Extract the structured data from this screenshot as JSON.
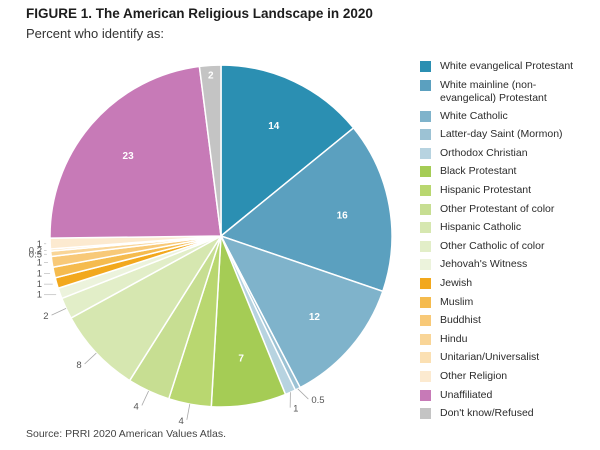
{
  "chart_data": {
    "type": "pie",
    "title": "FIGURE 1.  The American Religious Landscape in 2020",
    "subtitle": "Percent who identify as:",
    "source": "Source: PRRI 2020 American Values Atlas.",
    "legend_position": "right",
    "slices": [
      {
        "name": "White evangelical Protestant",
        "value": 14,
        "label": "14",
        "color": "#2b8fb2"
      },
      {
        "name": "White mainline (non-evangelical) Protestant",
        "value": 16,
        "label": "16",
        "color": "#5ba0bf"
      },
      {
        "name": "White Catholic",
        "value": 12,
        "label": "12",
        "color": "#7fb3cb"
      },
      {
        "name": "Latter-day Saint (Mormon)",
        "value": 0.5,
        "label": "0.5",
        "color": "#9cc2d4"
      },
      {
        "name": "Orthodox Christian",
        "value": 1,
        "label": "1",
        "color": "#b7d3e0"
      },
      {
        "name": "Black Protestant",
        "value": 7,
        "label": "7",
        "color": "#a5cc55"
      },
      {
        "name": "Hispanic Protestant",
        "value": 4,
        "label": "4",
        "color": "#b9d770"
      },
      {
        "name": "Other Protestant of color",
        "value": 4,
        "label": "4",
        "color": "#c7de92"
      },
      {
        "name": "Hispanic Catholic",
        "value": 8,
        "label": "8",
        "color": "#d6e7b0"
      },
      {
        "name": "Other Catholic of color",
        "value": 2,
        "label": "2",
        "color": "#e2eec8"
      },
      {
        "name": "Jehovah's Witness",
        "value": 1,
        "label": "1",
        "color": "#ecf3dc"
      },
      {
        "name": "Jewish",
        "value": 1,
        "label": "1",
        "color": "#f2a81d"
      },
      {
        "name": "Muslim",
        "value": 1,
        "label": "1",
        "color": "#f5bb4e"
      },
      {
        "name": "Buddhist",
        "value": 1,
        "label": "1",
        "color": "#f8c978"
      },
      {
        "name": "Hindu",
        "value": 0.5,
        "label": "0.5",
        "color": "#f9d597"
      },
      {
        "name": "Unitarian/Universalist",
        "value": 0.2,
        "label": "0.2",
        "color": "#fbe0b3"
      },
      {
        "name": "Other Religion",
        "value": 1,
        "label": "1",
        "color": "#fcead0"
      },
      {
        "name": "Unaffiliated",
        "value": 23,
        "label": "23",
        "color": "#c77ab7"
      },
      {
        "name": "Don't know/Refused",
        "value": 2,
        "label": "2",
        "color": "#c4c4c4"
      }
    ],
    "legend": [
      {
        "label": "White evangelical Protestant",
        "color": "#2b8fb2"
      },
      {
        "label": "White mainline (non-",
        "label2": "evangelical) Protestant",
        "color": "#5ba0bf"
      },
      {
        "label": "White Catholic",
        "color": "#7fb3cb"
      },
      {
        "label": "Latter-day Saint (Mormon)",
        "color": "#9cc2d4"
      },
      {
        "label": "Orthodox Christian",
        "color": "#b7d3e0"
      },
      {
        "label": "Black Protestant",
        "color": "#a5cc55"
      },
      {
        "label": "Hispanic Protestant",
        "color": "#b9d770"
      },
      {
        "label": "Other Protestant of color",
        "color": "#c7de92"
      },
      {
        "label": "Hispanic Catholic",
        "color": "#d6e7b0"
      },
      {
        "label": "Other Catholic of color",
        "color": "#e2eec8"
      },
      {
        "label": "Jehovah's Witness",
        "color": "#ecf3dc"
      },
      {
        "label": "Jewish",
        "color": "#f2a81d"
      },
      {
        "label": "Muslim",
        "color": "#f5bb4e"
      },
      {
        "label": "Buddhist",
        "color": "#f8c978"
      },
      {
        "label": "Hindu",
        "color": "#f9d597"
      },
      {
        "label": "Unitarian/Universalist",
        "color": "#fbe0b3"
      },
      {
        "label": "Other Religion",
        "color": "#fcead0"
      },
      {
        "label": "Unaffiliated",
        "color": "#c77ab7"
      },
      {
        "label": "Don't know/Refused",
        "color": "#c4c4c4"
      }
    ]
  }
}
